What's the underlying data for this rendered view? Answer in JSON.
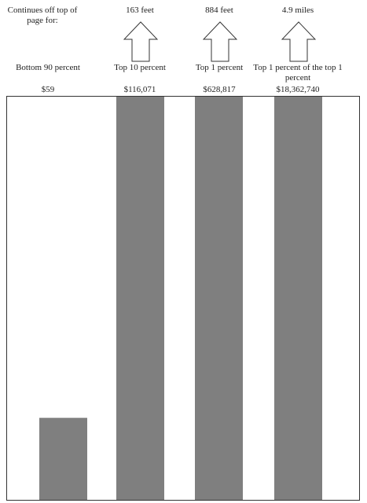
{
  "intro_label": "Continues off top of page for:",
  "chart_data": {
    "type": "bar",
    "title": "",
    "xlabel": "",
    "ylabel": "",
    "categories": [
      "Bottom 90 percent",
      "Top 10 percent",
      "Top 1 percent",
      "Top 1 percent of the top 1 percent"
    ],
    "value_labels": [
      "$59",
      "$116,071",
      "$628,817",
      "$18,362,740"
    ],
    "values": [
      59,
      116071,
      628817,
      18362740
    ],
    "ylim": [
      0,
      290
    ],
    "bar_color": "#7f7f7f",
    "off_page": [
      {
        "category_index": 1,
        "label": "163 feet"
      },
      {
        "category_index": 2,
        "label": "884 feet"
      },
      {
        "category_index": 3,
        "label": "4.9 miles"
      }
    ]
  }
}
